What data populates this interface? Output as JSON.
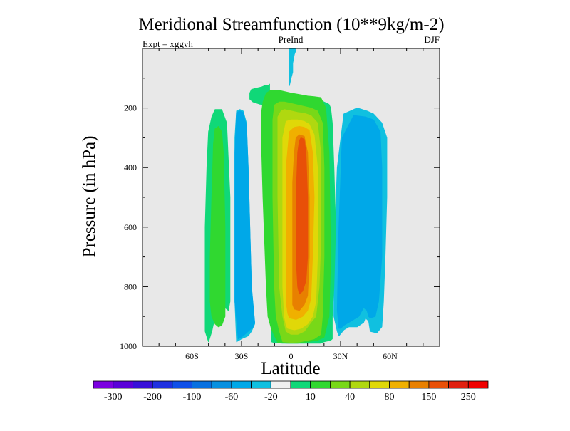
{
  "chart_data": {
    "type": "contour",
    "title": "Meridional Streamfunction (10**9kg/m-2)",
    "left_subtitle": "Expt = xggvh",
    "center_subtitle": "PreInd",
    "right_subtitle": "DJF",
    "xlabel": "Latitude",
    "ylabel": "Pressure (in hPa)",
    "x_ticks": [
      {
        "value": -60,
        "label": "60S"
      },
      {
        "value": -30,
        "label": "30S"
      },
      {
        "value": 0,
        "label": "0"
      },
      {
        "value": 30,
        "label": "30N"
      },
      {
        "value": 60,
        "label": "60N"
      }
    ],
    "y_ticks": [
      {
        "value": 200,
        "label": "200"
      },
      {
        "value": 400,
        "label": "400"
      },
      {
        "value": 600,
        "label": "600"
      },
      {
        "value": 800,
        "label": "800"
      },
      {
        "value": 1000,
        "label": "1000"
      }
    ],
    "xlim": [
      -90,
      90
    ],
    "ylim": [
      1000,
      0
    ],
    "background_color": "#e8e8e8",
    "colorbar": {
      "colors": [
        "#7b00e0",
        "#5a00d8",
        "#3810d8",
        "#2030e0",
        "#1050e8",
        "#0870e0",
        "#0890e0",
        "#00a8e8",
        "#10c0e0",
        "#f0f0f0",
        "#10d878",
        "#30d830",
        "#78d818",
        "#b0d810",
        "#e0d808",
        "#f0b000",
        "#e88000",
        "#e85008",
        "#e02010",
        "#f00000"
      ],
      "labels": [
        {
          "after_index": 0,
          "text": "-300"
        },
        {
          "after_index": 2,
          "text": "-200"
        },
        {
          "after_index": 4,
          "text": "-100"
        },
        {
          "after_index": 6,
          "text": "-60"
        },
        {
          "after_index": 8,
          "text": "-20"
        },
        {
          "after_index": 10,
          "text": "10"
        },
        {
          "after_index": 12,
          "text": "40"
        },
        {
          "after_index": 14,
          "text": "80"
        },
        {
          "after_index": 16,
          "text": "150"
        },
        {
          "after_index": 18,
          "text": "250"
        }
      ]
    },
    "contour_regions": [
      {
        "level": 10,
        "color": "#10d878",
        "lat": [
          -50,
          -48,
          -46,
          -42,
          -40,
          -38,
          -37,
          -37,
          -39,
          -42,
          -46,
          -48,
          -50,
          -51,
          -52,
          -52,
          -52
        ],
        "p": [
          985,
          950,
          900,
          870,
          870,
          880,
          850,
          500,
          250,
          205,
          205,
          230,
          280,
          400,
          600,
          800,
          950
        ]
      },
      {
        "level": 40,
        "color": "#30d830",
        "lat": [
          -48,
          -46,
          -44,
          -42,
          -40,
          -40,
          -41,
          -42,
          -44,
          -46,
          -47,
          -48,
          -49,
          -49
        ],
        "p": [
          900,
          925,
          935,
          930,
          900,
          600,
          350,
          280,
          262,
          270,
          320,
          500,
          700,
          850
        ]
      },
      {
        "level": -20,
        "color": "#10c0e0",
        "lat": [
          -33,
          -30,
          -28,
          -26,
          -24,
          -22,
          -24,
          -25,
          -26,
          -27,
          -29,
          -31,
          -33,
          -34,
          -34,
          -34
        ],
        "p": [
          985,
          975,
          970,
          965,
          950,
          925,
          800,
          600,
          400,
          250,
          210,
          205,
          210,
          300,
          600,
          850
        ]
      },
      {
        "level": -40,
        "color": "#00a8e8",
        "lat": [
          -32,
          -29,
          -26,
          -23,
          -22,
          -24,
          -25,
          -26,
          -27,
          -29,
          -31,
          -33,
          -34,
          -34
        ],
        "p": [
          975,
          965,
          950,
          935,
          920,
          800,
          600,
          400,
          260,
          215,
          210,
          215,
          350,
          850
        ]
      },
      {
        "level": -20,
        "color": "#10c0e0",
        "lat": [
          28,
          26,
          26,
          28,
          32,
          40,
          46,
          50,
          55,
          58,
          58,
          57,
          56,
          55,
          52,
          48,
          47,
          45,
          44,
          40,
          35,
          32,
          29
        ],
        "p": [
          950,
          900,
          700,
          400,
          220,
          200,
          210,
          220,
          250,
          300,
          500,
          700,
          850,
          935,
          955,
          950,
          915,
          905,
          920,
          935,
          935,
          945,
          965
        ]
      },
      {
        "level": -40,
        "color": "#00a8e8",
        "lat": [
          29,
          28,
          29,
          31,
          38,
          45,
          50,
          54,
          55,
          55,
          53,
          51,
          48,
          47,
          46,
          44,
          41,
          35,
          32,
          30
        ],
        "p": [
          940,
          880,
          600,
          300,
          225,
          230,
          240,
          280,
          400,
          700,
          850,
          900,
          905,
          900,
          880,
          870,
          900,
          920,
          930,
          940
        ]
      },
      {
        "level": 10,
        "color": "#10d878",
        "lat": [
          -12,
          -10,
          -5,
          -2,
          2,
          6,
          10,
          18,
          20,
          24,
          25,
          25,
          26,
          27,
          26,
          25,
          24,
          23,
          22,
          20,
          16,
          10,
          4,
          -2,
          -6,
          -10,
          -14,
          -19,
          -23,
          -25,
          -25,
          -24,
          -22,
          -18,
          -16,
          -14,
          -13
        ],
        "p": [
          985,
          988,
          990,
          990,
          990,
          990,
          990,
          990,
          985,
          980,
          975,
          900,
          800,
          600,
          400,
          250,
          200,
          188,
          185,
          180,
          168,
          165,
          170,
          175,
          175,
          180,
          190,
          187,
          180,
          170,
          150,
          138,
          135,
          130,
          125,
          125,
          120
        ]
      },
      {
        "level": 40,
        "color": "#30d830",
        "lat": [
          -8,
          -2,
          4,
          10,
          16,
          20,
          23,
          24,
          23,
          21,
          18,
          14,
          10,
          5,
          0,
          -4,
          -8,
          -12,
          -15,
          -17,
          -18,
          -18,
          -17,
          -15,
          -14,
          -12,
          -10
        ],
        "p": [
          988,
          990,
          990,
          985,
          980,
          970,
          900,
          700,
          350,
          200,
          165,
          162,
          160,
          155,
          150,
          145,
          140,
          140,
          150,
          180,
          220,
          300,
          500,
          800,
          900,
          940,
          965
        ]
      },
      {
        "level": 80,
        "color": "#78d818",
        "lat": [
          -5,
          0,
          5,
          10,
          14,
          18,
          19,
          20,
          20,
          19,
          16,
          12,
          8,
          4,
          0,
          -4,
          -7,
          -10,
          -11,
          -11,
          -10,
          -9,
          -7
        ],
        "p": [
          985,
          987,
          986,
          980,
          975,
          960,
          900,
          700,
          400,
          250,
          210,
          200,
          195,
          190,
          185,
          180,
          180,
          190,
          240,
          500,
          800,
          900,
          950
        ]
      },
      {
        "level": 120,
        "color": "#b0d810",
        "lat": [
          -3,
          0,
          4,
          8,
          12,
          15,
          17,
          18,
          18,
          16,
          12,
          8,
          4,
          0,
          -4,
          -6,
          -8,
          -8,
          -8,
          -7,
          -5
        ],
        "p": [
          950,
          960,
          960,
          950,
          920,
          900,
          800,
          650,
          350,
          250,
          225,
          218,
          215,
          210,
          205,
          210,
          230,
          300,
          500,
          800,
          900
        ]
      },
      {
        "level": 150,
        "color": "#e0d808",
        "lat": [
          -2,
          2,
          6,
          10,
          13,
          15,
          16,
          16,
          14,
          11,
          8,
          4,
          0,
          -3,
          -5,
          -5,
          -5,
          -4,
          -3
        ],
        "p": [
          940,
          945,
          940,
          925,
          900,
          850,
          700,
          400,
          290,
          255,
          245,
          240,
          240,
          245,
          300,
          600,
          800,
          900,
          930
        ]
      },
      {
        "level": 200,
        "color": "#f0b000",
        "lat": [
          -1,
          3,
          7,
          10,
          12,
          13,
          14,
          13,
          11,
          8,
          5,
          2,
          -1,
          -3,
          -3,
          -3,
          -2
        ],
        "p": [
          905,
          910,
          900,
          880,
          840,
          700,
          500,
          350,
          275,
          265,
          262,
          265,
          280,
          400,
          700,
          850,
          890
        ]
      },
      {
        "level": 250,
        "color": "#e88000",
        "lat": [
          2,
          5,
          8,
          10,
          11,
          11,
          10,
          8,
          5,
          3,
          2,
          1,
          1,
          1,
          1
        ],
        "p": [
          875,
          880,
          860,
          830,
          700,
          500,
          350,
          295,
          290,
          300,
          350,
          450,
          700,
          820,
          860
        ]
      },
      {
        "level": 300,
        "color": "#e85008",
        "lat": [
          5,
          7,
          9,
          10,
          10,
          9,
          8,
          6,
          5,
          4,
          3,
          3,
          4
        ],
        "p": [
          825,
          815,
          780,
          700,
          500,
          350,
          305,
          300,
          310,
          350,
          500,
          700,
          800
        ]
      },
      {
        "level": -20,
        "color": "#10c0e0",
        "lat": [
          -1,
          0,
          1,
          1,
          2,
          3,
          3,
          -1,
          -1
        ],
        "p": [
          125,
          100,
          80,
          50,
          20,
          5,
          0,
          0,
          60
        ]
      }
    ]
  }
}
